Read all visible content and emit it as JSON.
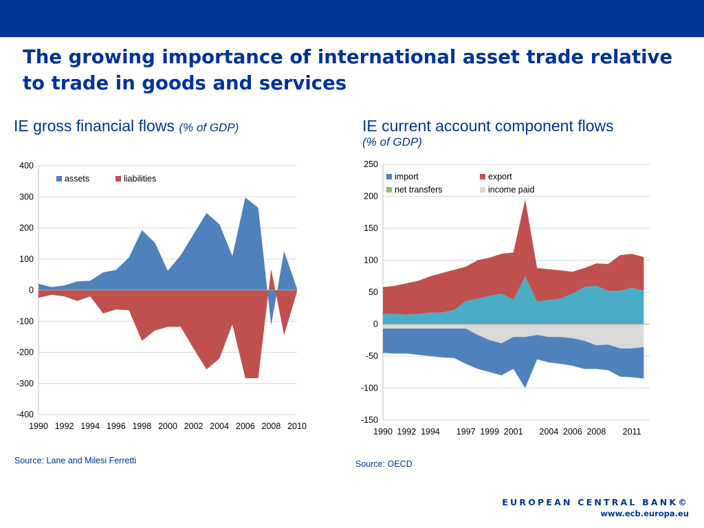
{
  "header": {
    "title": "The growing importance of international asset trade relative to trade in goods and services"
  },
  "colors": {
    "brand_blue": "#003399",
    "assets": "#4F81BD",
    "liabilities": "#C0504D",
    "import": "#4F81BD",
    "export": "#C0504D",
    "net_transfers": "#9BBB59",
    "income_paid": "#D9D9D9",
    "net_transfers_visible": "#4BACC6"
  },
  "left_panel": {
    "title": "IE gross financial flows",
    "unit": "(% of GDP)",
    "source": "Source: Lane and Milesi Ferretti"
  },
  "right_panel": {
    "title": "IE current account component flows",
    "unit": "(% of GDP)",
    "source": "Source: OECD"
  },
  "footer": {
    "org": "EUROPEAN CENTRAL BANK",
    "copyright": "©",
    "url": "www.ecb.europa.eu"
  },
  "chart_data": [
    {
      "type": "area",
      "legend_position": "top-left",
      "grid": true,
      "ylim": [
        -400,
        400
      ],
      "yticks": [
        400,
        300,
        200,
        100,
        0,
        -100,
        -200,
        -300,
        -400
      ],
      "xlim": [
        1990,
        2010
      ],
      "xticks": [
        "1990",
        "1992",
        "1994",
        "1996",
        "1998",
        "2000",
        "2002",
        "2004",
        "2006",
        "2008",
        "2010"
      ],
      "x": [
        1990,
        1991,
        1992,
        1993,
        1994,
        1995,
        1996,
        1997,
        1998,
        1999,
        2000,
        2001,
        2002,
        2003,
        2004,
        2005,
        2006,
        2007,
        2008,
        2009,
        2010
      ],
      "series": [
        {
          "name": "assets",
          "values": [
            20,
            10,
            15,
            28,
            30,
            57,
            65,
            105,
            193,
            153,
            62,
            112,
            180,
            248,
            212,
            110,
            298,
            265,
            -113,
            125,
            5
          ]
        },
        {
          "name": "liabilities",
          "values": [
            -25,
            -15,
            -20,
            -35,
            -20,
            -75,
            -62,
            -65,
            -163,
            -130,
            -118,
            -118,
            -188,
            -255,
            -220,
            -110,
            -283,
            -283,
            68,
            -145,
            -5
          ]
        }
      ]
    },
    {
      "type": "area",
      "legend_position": "top-left",
      "grid": true,
      "ylim": [
        -150,
        250
      ],
      "yticks": [
        250,
        200,
        150,
        100,
        50,
        0,
        -50,
        -100,
        -150
      ],
      "xlim": [
        1990,
        2012.5
      ],
      "xticks": [
        "1990",
        "1992",
        "1994",
        "1997",
        "1999",
        "2001",
        "2004",
        "2006",
        "2008",
        "2011"
      ],
      "x": [
        1990,
        1991,
        1992,
        1993,
        1994,
        1995,
        1996,
        1997,
        1998,
        1999,
        2000,
        2001,
        2002,
        2003,
        2004,
        2005,
        2006,
        2007,
        2008,
        2009,
        2010,
        2011,
        2012
      ],
      "series": [
        {
          "name": "net transfers",
          "values": [
            16,
            16,
            15,
            16,
            18,
            18,
            22,
            36,
            40,
            44,
            48,
            38,
            75,
            35,
            38,
            40,
            48,
            58,
            60,
            52,
            52,
            57,
            52
          ]
        },
        {
          "name": "export",
          "values": [
            58,
            60,
            64,
            68,
            75,
            80,
            85,
            90,
            100,
            104,
            110,
            112,
            195,
            88,
            86,
            84,
            82,
            88,
            95,
            94,
            108,
            110,
            105
          ]
        },
        {
          "name": "income paid",
          "values": [
            -7,
            -7,
            -7,
            -7,
            -7,
            -7,
            -7,
            -7,
            -17,
            -25,
            -30,
            -20,
            -20,
            -17,
            -20,
            -20,
            -22,
            -26,
            -33,
            -32,
            -38,
            -38,
            -36
          ]
        },
        {
          "name": "import",
          "values": [
            -45,
            -46,
            -46,
            -48,
            -50,
            -52,
            -53,
            -62,
            -70,
            -75,
            -80,
            -70,
            -100,
            -55,
            -60,
            -62,
            -65,
            -70,
            -70,
            -72,
            -82,
            -83,
            -85
          ]
        }
      ],
      "legend": [
        "import",
        "export",
        "net transfers",
        "income paid"
      ]
    }
  ]
}
